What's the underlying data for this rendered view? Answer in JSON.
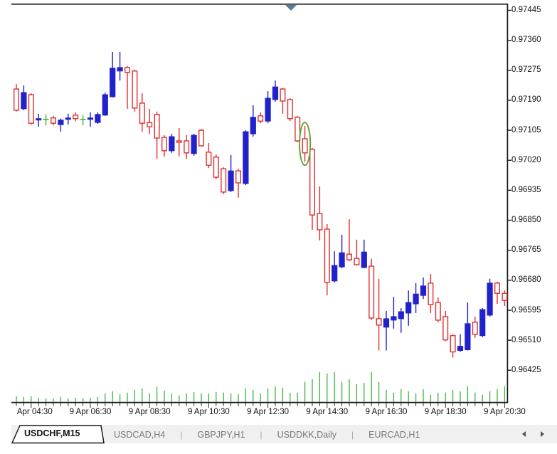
{
  "chart": {
    "price_axis": {
      "labels": [
        "0.97445",
        "0.97360",
        "0.97275",
        "0.97190",
        "0.97105",
        "0.97020",
        "0.96935",
        "0.96850",
        "0.96765",
        "0.96680",
        "0.96595",
        "0.96510",
        "0.96425"
      ]
    },
    "time_axis": {
      "labels": [
        {
          "text": "Apr 04:30",
          "candle": 2
        },
        {
          "text": "9 Apr 06:30",
          "candle": 10
        },
        {
          "text": "9 Apr 08:30",
          "candle": 18
        },
        {
          "text": "9 Apr 10:30",
          "candle": 26
        },
        {
          "text": "9 Apr 12:30",
          "candle": 34
        },
        {
          "text": "9 Apr 14:30",
          "candle": 42
        },
        {
          "text": "9 Apr 16:30",
          "candle": 50
        },
        {
          "text": "9 Apr 18:30",
          "candle": 58
        },
        {
          "text": "9 Apr 20:30",
          "candle": 66
        }
      ]
    },
    "annotation": {
      "shape": "ellipse",
      "candle_index": 39,
      "color": "#6da03c"
    },
    "shift_marker": {
      "shape": "triangle-down",
      "color": "#5b7c99"
    },
    "colors": {
      "up": "#2222cc",
      "down": "#e03030",
      "doji": "#3cb43c",
      "volume": "#3cb43c",
      "frame": "#1a1a1a"
    }
  },
  "chart_data": {
    "type": "candlestick",
    "symbol": "USDCHF",
    "timeframe": "M15",
    "date": "9 Apr",
    "price_step": 0.00085,
    "ylim": [
      0.96333,
      0.97464
    ],
    "candles": [
      {
        "t": "04:00",
        "o": 0.97222,
        "h": 0.97236,
        "l": 0.97158,
        "c": 0.97162,
        "k": "d",
        "v": 8
      },
      {
        "t": "04:15",
        "o": 0.97166,
        "h": 0.97232,
        "l": 0.97162,
        "c": 0.97212,
        "k": "u",
        "v": 7
      },
      {
        "t": "04:30",
        "o": 0.97206,
        "h": 0.9721,
        "l": 0.97121,
        "c": 0.97125,
        "k": "d",
        "v": 8
      },
      {
        "t": "04:45",
        "o": 0.97134,
        "h": 0.97152,
        "l": 0.97115,
        "c": 0.97138,
        "k": "u",
        "v": 6
      },
      {
        "t": "05:00",
        "o": 0.97136,
        "h": 0.9715,
        "l": 0.97119,
        "c": 0.97136,
        "k": "g",
        "v": 5
      },
      {
        "t": "05:15",
        "o": 0.9714,
        "h": 0.97146,
        "l": 0.97119,
        "c": 0.97125,
        "k": "d",
        "v": 5
      },
      {
        "t": "05:30",
        "o": 0.97121,
        "h": 0.97138,
        "l": 0.97101,
        "c": 0.97134,
        "k": "u",
        "v": 7
      },
      {
        "t": "05:45",
        "o": 0.97136,
        "h": 0.97152,
        "l": 0.97121,
        "c": 0.9714,
        "k": "u",
        "v": 5
      },
      {
        "t": "06:00",
        "o": 0.97148,
        "h": 0.97156,
        "l": 0.97131,
        "c": 0.97138,
        "k": "d",
        "v": 6
      },
      {
        "t": "06:15",
        "o": 0.97136,
        "h": 0.97148,
        "l": 0.97119,
        "c": 0.97136,
        "k": "g",
        "v": 5
      },
      {
        "t": "06:30",
        "o": 0.97136,
        "h": 0.97156,
        "l": 0.97115,
        "c": 0.9714,
        "k": "u",
        "v": 6
      },
      {
        "t": "06:45",
        "o": 0.97127,
        "h": 0.97156,
        "l": 0.97123,
        "c": 0.9715,
        "k": "u",
        "v": 7
      },
      {
        "t": "07:00",
        "o": 0.97148,
        "h": 0.97212,
        "l": 0.97146,
        "c": 0.97206,
        "k": "u",
        "v": 12
      },
      {
        "t": "07:15",
        "o": 0.972,
        "h": 0.97327,
        "l": 0.97198,
        "c": 0.97281,
        "k": "u",
        "v": 15
      },
      {
        "t": "07:30",
        "o": 0.97273,
        "h": 0.97327,
        "l": 0.97246,
        "c": 0.97283,
        "k": "u",
        "v": 11
      },
      {
        "t": "07:45",
        "o": 0.97283,
        "h": 0.97287,
        "l": 0.97166,
        "c": 0.97269,
        "k": "d",
        "v": 13
      },
      {
        "t": "08:00",
        "o": 0.97273,
        "h": 0.97277,
        "l": 0.97158,
        "c": 0.97168,
        "k": "d",
        "v": 17
      },
      {
        "t": "08:15",
        "o": 0.97182,
        "h": 0.9721,
        "l": 0.97101,
        "c": 0.97125,
        "k": "d",
        "v": 19
      },
      {
        "t": "08:30",
        "o": 0.97127,
        "h": 0.97166,
        "l": 0.97095,
        "c": 0.97115,
        "k": "d",
        "v": 12
      },
      {
        "t": "08:45",
        "o": 0.9715,
        "h": 0.97158,
        "l": 0.97024,
        "c": 0.97083,
        "k": "d",
        "v": 21
      },
      {
        "t": "09:00",
        "o": 0.97085,
        "h": 0.97091,
        "l": 0.97031,
        "c": 0.97047,
        "k": "d",
        "v": 16
      },
      {
        "t": "09:15",
        "o": 0.97047,
        "h": 0.97095,
        "l": 0.97041,
        "c": 0.97087,
        "k": "u",
        "v": 12
      },
      {
        "t": "09:30",
        "o": 0.97075,
        "h": 0.97111,
        "l": 0.97031,
        "c": 0.97071,
        "k": "d",
        "v": 9
      },
      {
        "t": "09:45",
        "o": 0.97075,
        "h": 0.97091,
        "l": 0.97024,
        "c": 0.97041,
        "k": "d",
        "v": 12
      },
      {
        "t": "10:00",
        "o": 0.97039,
        "h": 0.97095,
        "l": 0.97033,
        "c": 0.97091,
        "k": "u",
        "v": 14
      },
      {
        "t": "10:15",
        "o": 0.97105,
        "h": 0.97109,
        "l": 0.97059,
        "c": 0.97061,
        "k": "d",
        "v": 12
      },
      {
        "t": "10:30",
        "o": 0.97043,
        "h": 0.97069,
        "l": 0.96998,
        "c": 0.97006,
        "k": "d",
        "v": 12
      },
      {
        "t": "10:45",
        "o": 0.97029,
        "h": 0.97037,
        "l": 0.96966,
        "c": 0.96972,
        "k": "d",
        "v": 14
      },
      {
        "t": "11:00",
        "o": 0.96996,
        "h": 0.97,
        "l": 0.96924,
        "c": 0.9693,
        "k": "d",
        "v": 13
      },
      {
        "t": "11:15",
        "o": 0.96934,
        "h": 0.97035,
        "l": 0.9693,
        "c": 0.9699,
        "k": "u",
        "v": 12
      },
      {
        "t": "11:30",
        "o": 0.9699,
        "h": 0.96996,
        "l": 0.96914,
        "c": 0.96956,
        "k": "d",
        "v": 11
      },
      {
        "t": "11:45",
        "o": 0.96954,
        "h": 0.97105,
        "l": 0.9695,
        "c": 0.97101,
        "k": "u",
        "v": 19
      },
      {
        "t": "12:00",
        "o": 0.97095,
        "h": 0.97176,
        "l": 0.97087,
        "c": 0.97142,
        "k": "u",
        "v": 17
      },
      {
        "t": "12:15",
        "o": 0.97146,
        "h": 0.97156,
        "l": 0.97125,
        "c": 0.97131,
        "k": "d",
        "v": 12
      },
      {
        "t": "12:30",
        "o": 0.97131,
        "h": 0.97216,
        "l": 0.97125,
        "c": 0.97196,
        "k": "u",
        "v": 19
      },
      {
        "t": "12:45",
        "o": 0.97192,
        "h": 0.97246,
        "l": 0.97186,
        "c": 0.97228,
        "k": "u",
        "v": 22
      },
      {
        "t": "13:00",
        "o": 0.97222,
        "h": 0.97226,
        "l": 0.97152,
        "c": 0.97188,
        "k": "d",
        "v": 20
      },
      {
        "t": "13:15",
        "o": 0.97192,
        "h": 0.97196,
        "l": 0.97131,
        "c": 0.97138,
        "k": "d",
        "v": 13
      },
      {
        "t": "13:30",
        "o": 0.97142,
        "h": 0.97146,
        "l": 0.97071,
        "c": 0.97075,
        "k": "d",
        "v": 13
      },
      {
        "t": "13:45",
        "o": 0.97081,
        "h": 0.97117,
        "l": 0.97016,
        "c": 0.97041,
        "k": "d",
        "v": 28
      },
      {
        "t": "14:00",
        "o": 0.97051,
        "h": 0.97055,
        "l": 0.96823,
        "c": 0.96865,
        "k": "d",
        "v": 32
      },
      {
        "t": "14:15",
        "o": 0.96869,
        "h": 0.96946,
        "l": 0.96793,
        "c": 0.96823,
        "k": "d",
        "v": 42
      },
      {
        "t": "14:30",
        "o": 0.96825,
        "h": 0.96839,
        "l": 0.96637,
        "c": 0.96674,
        "k": "d",
        "v": 40
      },
      {
        "t": "14:45",
        "o": 0.96678,
        "h": 0.96762,
        "l": 0.96674,
        "c": 0.96722,
        "k": "u",
        "v": 42
      },
      {
        "t": "15:00",
        "o": 0.96718,
        "h": 0.96809,
        "l": 0.96714,
        "c": 0.96758,
        "k": "u",
        "v": 28
      },
      {
        "t": "15:15",
        "o": 0.96754,
        "h": 0.96853,
        "l": 0.96734,
        "c": 0.96738,
        "k": "d",
        "v": 32
      },
      {
        "t": "15:30",
        "o": 0.96742,
        "h": 0.96795,
        "l": 0.96722,
        "c": 0.96724,
        "k": "d",
        "v": 25
      },
      {
        "t": "15:45",
        "o": 0.96716,
        "h": 0.96795,
        "l": 0.96714,
        "c": 0.9676,
        "k": "u",
        "v": 27
      },
      {
        "t": "16:00",
        "o": 0.9672,
        "h": 0.96741,
        "l": 0.96567,
        "c": 0.96573,
        "k": "d",
        "v": 42
      },
      {
        "t": "16:15",
        "o": 0.96571,
        "h": 0.96684,
        "l": 0.96481,
        "c": 0.96553,
        "k": "d",
        "v": 28
      },
      {
        "t": "16:30",
        "o": 0.96547,
        "h": 0.96593,
        "l": 0.96481,
        "c": 0.96571,
        "k": "u",
        "v": 17
      },
      {
        "t": "16:45",
        "o": 0.96567,
        "h": 0.96633,
        "l": 0.96543,
        "c": 0.96577,
        "k": "u",
        "v": 13
      },
      {
        "t": "17:00",
        "o": 0.96571,
        "h": 0.96601,
        "l": 0.96531,
        "c": 0.96591,
        "k": "u",
        "v": 18
      },
      {
        "t": "17:15",
        "o": 0.96587,
        "h": 0.96651,
        "l": 0.96551,
        "c": 0.96617,
        "k": "u",
        "v": 15
      },
      {
        "t": "17:30",
        "o": 0.96613,
        "h": 0.96672,
        "l": 0.96587,
        "c": 0.96641,
        "k": "u",
        "v": 12
      },
      {
        "t": "17:45",
        "o": 0.96637,
        "h": 0.96688,
        "l": 0.96627,
        "c": 0.96664,
        "k": "u",
        "v": 18
      },
      {
        "t": "18:00",
        "o": 0.96672,
        "h": 0.96698,
        "l": 0.96587,
        "c": 0.96611,
        "k": "d",
        "v": 10
      },
      {
        "t": "18:15",
        "o": 0.96617,
        "h": 0.96631,
        "l": 0.96561,
        "c": 0.96567,
        "k": "d",
        "v": 13
      },
      {
        "t": "18:30",
        "o": 0.96577,
        "h": 0.96593,
        "l": 0.96507,
        "c": 0.96511,
        "k": "d",
        "v": 13
      },
      {
        "t": "18:45",
        "o": 0.96523,
        "h": 0.96527,
        "l": 0.96461,
        "c": 0.96477,
        "k": "d",
        "v": 17
      },
      {
        "t": "19:00",
        "o": 0.96481,
        "h": 0.96527,
        "l": 0.96477,
        "c": 0.96493,
        "k": "u",
        "v": 15
      },
      {
        "t": "19:15",
        "o": 0.96483,
        "h": 0.96617,
        "l": 0.96481,
        "c": 0.96557,
        "k": "u",
        "v": 22
      },
      {
        "t": "19:30",
        "o": 0.96561,
        "h": 0.96577,
        "l": 0.96517,
        "c": 0.96527,
        "k": "d",
        "v": 13
      },
      {
        "t": "19:45",
        "o": 0.96523,
        "h": 0.96601,
        "l": 0.96519,
        "c": 0.96597,
        "k": "u",
        "v": 10
      },
      {
        "t": "20:00",
        "o": 0.96581,
        "h": 0.96684,
        "l": 0.96577,
        "c": 0.96672,
        "k": "u",
        "v": 15
      },
      {
        "t": "20:15",
        "o": 0.96672,
        "h": 0.96676,
        "l": 0.96613,
        "c": 0.96643,
        "k": "d",
        "v": 18
      },
      {
        "t": "20:30",
        "o": 0.96643,
        "h": 0.96651,
        "l": 0.96607,
        "c": 0.96623,
        "k": "d",
        "v": 22
      }
    ]
  },
  "tabs": {
    "active": "USDCHF,M15",
    "inactive": [
      "USDCAD,H4",
      "GBPJPY,H1",
      "USDDKK,Daily",
      "EURCAD,H1"
    ],
    "separator": "|"
  }
}
